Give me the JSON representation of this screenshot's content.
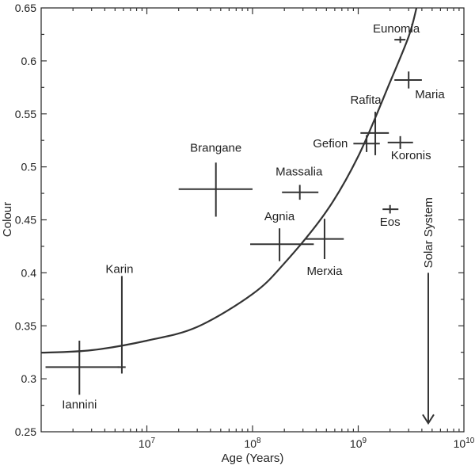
{
  "chart_data": {
    "type": "scatter",
    "title": "",
    "xlabel": "Age (Years)",
    "ylabel": "Colour",
    "xscale": "log",
    "xlim": [
      1000000,
      10000000000
    ],
    "ylim": [
      0.25,
      0.65
    ],
    "grid": false,
    "x_ticks": [
      {
        "value": 10000000,
        "base": "10",
        "exp": "7"
      },
      {
        "value": 100000000,
        "base": "10",
        "exp": "8"
      },
      {
        "value": 1000000000,
        "base": "10",
        "exp": "9"
      },
      {
        "value": 10000000000,
        "base": "10",
        "exp": "10"
      }
    ],
    "y_ticks": [
      "0.25",
      "0.3",
      "0.35",
      "0.4",
      "0.45",
      "0.5",
      "0.55",
      "0.6",
      "0.65"
    ],
    "points": [
      {
        "label": "Iannini",
        "x": 2300000,
        "y": 0.311,
        "x_lo": 1100000,
        "x_hi": 5500000,
        "y_lo": 0.285,
        "y_hi": 0.336
      },
      {
        "label": "Karin",
        "x": 5800000,
        "y": 0.311,
        "x_lo": 5300000,
        "x_hi": 6300000,
        "y_lo": 0.305,
        "y_hi": 0.397
      },
      {
        "label": "Brangane",
        "x": 45000000,
        "y": 0.479,
        "x_lo": 20000000,
        "x_hi": 100000000,
        "y_lo": 0.453,
        "y_hi": 0.504
      },
      {
        "label": "Massalia",
        "x": 280000000,
        "y": 0.476,
        "x_lo": 190000000,
        "x_hi": 420000000,
        "y_lo": 0.469,
        "y_hi": 0.483
      },
      {
        "label": "Agnia",
        "x": 180000000,
        "y": 0.427,
        "x_lo": 95000000,
        "x_hi": 380000000,
        "y_lo": 0.411,
        "y_hi": 0.442
      },
      {
        "label": "Merxia",
        "x": 480000000,
        "y": 0.432,
        "x_lo": 320000000,
        "x_hi": 730000000,
        "y_lo": 0.413,
        "y_hi": 0.451
      },
      {
        "label": "Eos",
        "x": 2000000000,
        "y": 0.46,
        "x_lo": 1700000000,
        "x_hi": 2400000000,
        "y_lo": 0.456,
        "y_hi": 0.464
      },
      {
        "label": "Gefion",
        "x": 1200000000,
        "y": 0.522,
        "x_lo": 900000000,
        "x_hi": 1600000000,
        "y_lo": 0.514,
        "y_hi": 0.53
      },
      {
        "label": "Rafita",
        "x": 1450000000,
        "y": 0.532,
        "x_lo": 1050000000,
        "x_hi": 1950000000,
        "y_lo": 0.511,
        "y_hi": 0.552
      },
      {
        "label": "Koronis",
        "x": 2500000000,
        "y": 0.523,
        "x_lo": 1900000000,
        "x_hi": 3300000000,
        "y_lo": 0.517,
        "y_hi": 0.529
      },
      {
        "label": "Maria",
        "x": 3000000000,
        "y": 0.582,
        "x_lo": 2200000000,
        "x_hi": 4000000000,
        "y_lo": 0.574,
        "y_hi": 0.59
      },
      {
        "label": "Eunomia",
        "x": 2500000000,
        "y": 0.62,
        "x_lo": 2200000000,
        "x_hi": 2800000000,
        "y_lo": 0.617,
        "y_hi": 0.623
      }
    ],
    "fit_curve": [
      [
        1000000,
        0.3246
      ],
      [
        3000000,
        0.327
      ],
      [
        10000000,
        0.336
      ],
      [
        30000000,
        0.349
      ],
      [
        100000000,
        0.38
      ],
      [
        200000000,
        0.409
      ],
      [
        500000000,
        0.458
      ],
      [
        1000000000,
        0.51
      ],
      [
        2000000000,
        0.58
      ],
      [
        3000000000,
        0.623
      ],
      [
        3560000000,
        0.65
      ]
    ],
    "annotation": {
      "text": "Solar System",
      "x": 4600000000,
      "y_from": 0.4,
      "y_to": 0.258
    }
  }
}
